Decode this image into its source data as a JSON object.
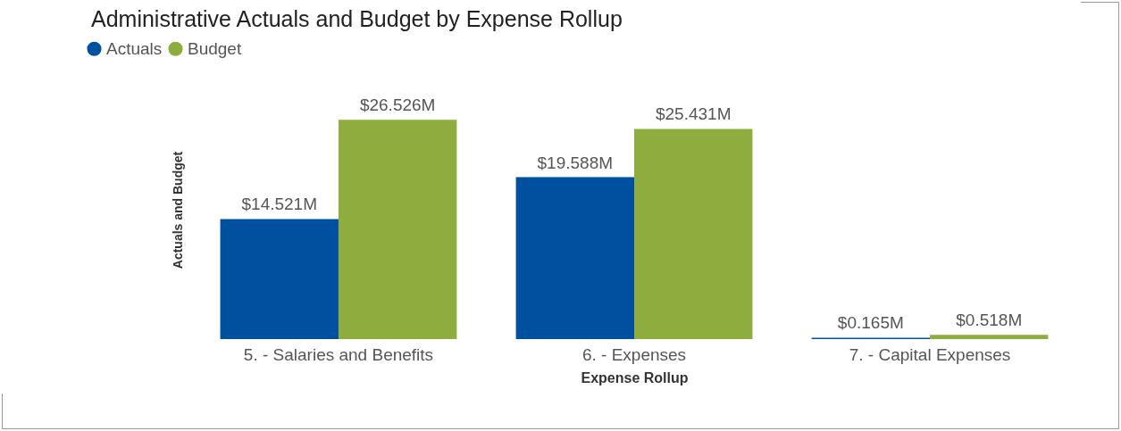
{
  "chart_data": {
    "type": "bar",
    "title": "Administrative Actuals and Budget by Expense Rollup",
    "xlabel": "Expense Rollup",
    "ylabel": "Actuals and Budget",
    "categories": [
      "5. - Salaries and Benefits",
      "6. - Expenses",
      "7. - Capital Expenses"
    ],
    "series": [
      {
        "name": "Actuals",
        "color": "#0050a0",
        "values": [
          14.521,
          19.588,
          0.165
        ],
        "value_labels": [
          "$14.521M",
          "$19.588M",
          "$0.165M"
        ]
      },
      {
        "name": "Budget",
        "color": "#8fac3e",
        "values": [
          26.526,
          25.431,
          0.518
        ],
        "value_labels": [
          "$26.526M",
          "$25.431M",
          "$0.518M"
        ]
      }
    ],
    "legend": "top left",
    "grid": false,
    "tick_labels": "x"
  }
}
